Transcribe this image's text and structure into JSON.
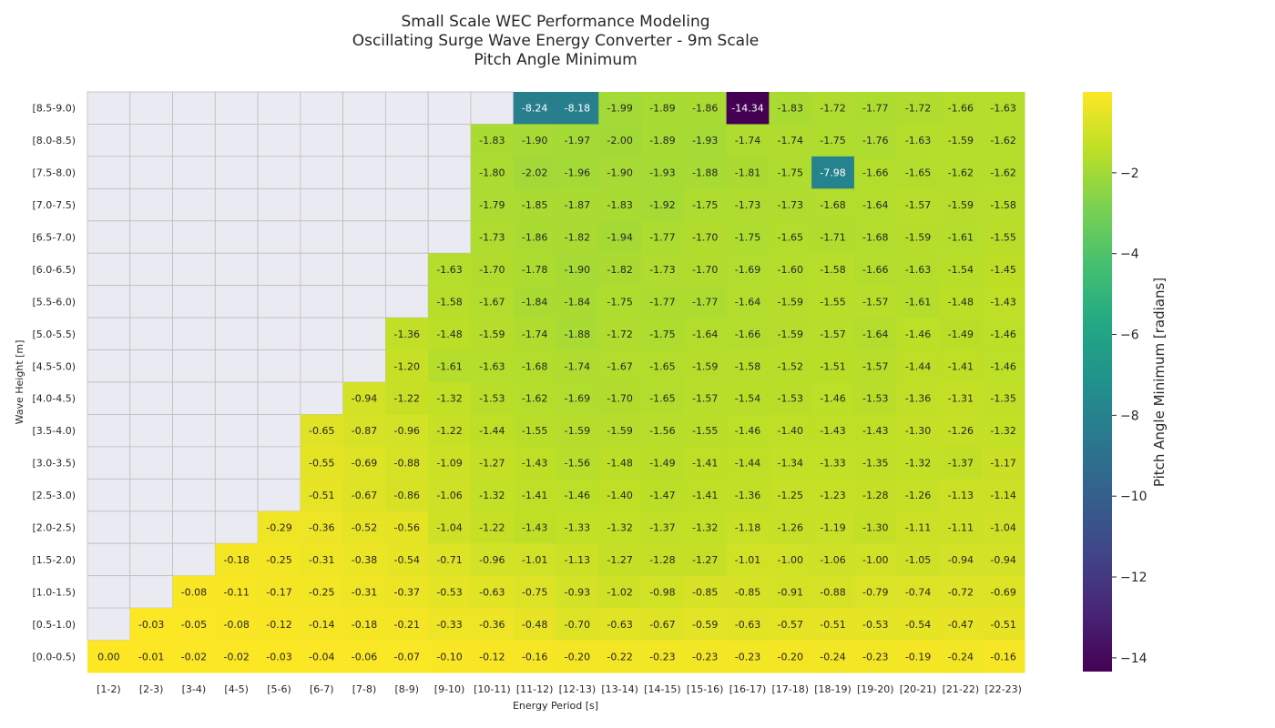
{
  "chart_data": {
    "type": "heatmap",
    "title": [
      "Small Scale WEC Performance Modeling",
      "Oscillating Surge Wave Energy Converter - 9m Scale",
      "Pitch Angle Minimum"
    ],
    "xlabel": "Energy Period [s]",
    "ylabel": "Wave Height [m]",
    "colorbar_label": "Pitch Angle Minimum [radians]",
    "colormap": "viridis",
    "vmin": -14.34,
    "vmax": 0.0,
    "colorbar_ticks": [
      -2,
      -4,
      -6,
      -8,
      -10,
      -12,
      -14
    ],
    "colorbar_tick_labels": [
      "−2",
      "−4",
      "−6",
      "−8",
      "−10",
      "−12",
      "−14"
    ],
    "missing_color": "#eaeaf2",
    "x_categories": [
      "[1-2)",
      "[2-3)",
      "[3-4)",
      "[4-5)",
      "[5-6)",
      "[6-7)",
      "[7-8)",
      "[8-9)",
      "[9-10)",
      "[10-11)",
      "[11-12)",
      "[12-13)",
      "[13-14)",
      "[14-15)",
      "[15-16)",
      "[16-17)",
      "[17-18)",
      "[18-19)",
      "[19-20)",
      "[20-21)",
      "[21-22)",
      "[22-23)"
    ],
    "y_categories": [
      "[8.5-9.0)",
      "[8.0-8.5)",
      "[7.5-8.0)",
      "[7.0-7.5)",
      "[6.5-7.0)",
      "[6.0-6.5)",
      "[5.5-6.0)",
      "[5.0-5.5)",
      "[4.5-5.0)",
      "[4.0-4.5)",
      "[3.5-4.0)",
      "[3.0-3.5)",
      "[2.5-3.0)",
      "[2.0-2.5)",
      "[1.5-2.0)",
      "[1.0-1.5)",
      "[0.5-1.0)",
      "[0.0-0.5)"
    ],
    "values": [
      [
        null,
        null,
        null,
        null,
        null,
        null,
        null,
        null,
        null,
        null,
        -8.24,
        -8.18,
        -1.99,
        -1.89,
        -1.86,
        -14.34,
        -1.83,
        -1.72,
        -1.77,
        -1.72,
        -1.66,
        -1.63
      ],
      [
        null,
        null,
        null,
        null,
        null,
        null,
        null,
        null,
        null,
        -1.83,
        -1.9,
        -1.97,
        -2.0,
        -1.89,
        -1.93,
        -1.74,
        -1.74,
        -1.75,
        -1.76,
        -1.63,
        -1.59,
        -1.62
      ],
      [
        null,
        null,
        null,
        null,
        null,
        null,
        null,
        null,
        null,
        -1.8,
        -2.02,
        -1.96,
        -1.9,
        -1.93,
        -1.88,
        -1.81,
        -1.75,
        -7.98,
        -1.66,
        -1.65,
        -1.62,
        -1.62
      ],
      [
        null,
        null,
        null,
        null,
        null,
        null,
        null,
        null,
        null,
        -1.79,
        -1.85,
        -1.87,
        -1.83,
        -1.92,
        -1.75,
        -1.73,
        -1.73,
        -1.68,
        -1.64,
        -1.57,
        -1.59,
        -1.58
      ],
      [
        null,
        null,
        null,
        null,
        null,
        null,
        null,
        null,
        null,
        -1.73,
        -1.86,
        -1.82,
        -1.94,
        -1.77,
        -1.7,
        -1.75,
        -1.65,
        -1.71,
        -1.68,
        -1.59,
        -1.61,
        -1.55
      ],
      [
        null,
        null,
        null,
        null,
        null,
        null,
        null,
        null,
        -1.63,
        -1.7,
        -1.78,
        -1.9,
        -1.82,
        -1.73,
        -1.7,
        -1.69,
        -1.6,
        -1.58,
        -1.66,
        -1.63,
        -1.54,
        -1.45
      ],
      [
        null,
        null,
        null,
        null,
        null,
        null,
        null,
        null,
        -1.58,
        -1.67,
        -1.84,
        -1.84,
        -1.75,
        -1.77,
        -1.77,
        -1.64,
        -1.59,
        -1.55,
        -1.57,
        -1.61,
        -1.48,
        -1.43
      ],
      [
        null,
        null,
        null,
        null,
        null,
        null,
        null,
        -1.36,
        -1.48,
        -1.59,
        -1.74,
        -1.88,
        -1.72,
        -1.75,
        -1.64,
        -1.66,
        -1.59,
        -1.57,
        -1.64,
        -1.46,
        -1.49,
        -1.46
      ],
      [
        null,
        null,
        null,
        null,
        null,
        null,
        null,
        -1.2,
        -1.61,
        -1.63,
        -1.68,
        -1.74,
        -1.67,
        -1.65,
        -1.59,
        -1.58,
        -1.52,
        -1.51,
        -1.57,
        -1.44,
        -1.41,
        -1.46
      ],
      [
        null,
        null,
        null,
        null,
        null,
        null,
        -0.94,
        -1.22,
        -1.32,
        -1.53,
        -1.62,
        -1.69,
        -1.7,
        -1.65,
        -1.57,
        -1.54,
        -1.53,
        -1.46,
        -1.53,
        -1.36,
        -1.31,
        -1.35
      ],
      [
        null,
        null,
        null,
        null,
        null,
        -0.65,
        -0.87,
        -0.96,
        -1.22,
        -1.44,
        -1.55,
        -1.59,
        -1.59,
        -1.56,
        -1.55,
        -1.46,
        -1.4,
        -1.43,
        -1.43,
        -1.3,
        -1.26,
        -1.32
      ],
      [
        null,
        null,
        null,
        null,
        null,
        -0.55,
        -0.69,
        -0.88,
        -1.09,
        -1.27,
        -1.43,
        -1.56,
        -1.48,
        -1.49,
        -1.41,
        -1.44,
        -1.34,
        -1.33,
        -1.35,
        -1.32,
        -1.37,
        -1.17
      ],
      [
        null,
        null,
        null,
        null,
        null,
        -0.51,
        -0.67,
        -0.86,
        -1.06,
        -1.32,
        -1.41,
        -1.46,
        -1.4,
        -1.47,
        -1.41,
        -1.36,
        -1.25,
        -1.23,
        -1.28,
        -1.26,
        -1.13,
        -1.14
      ],
      [
        null,
        null,
        null,
        null,
        -0.29,
        -0.36,
        -0.52,
        -0.56,
        -1.04,
        -1.22,
        -1.43,
        -1.33,
        -1.32,
        -1.37,
        -1.32,
        -1.18,
        -1.26,
        -1.19,
        -1.3,
        -1.11,
        -1.11,
        -1.04
      ],
      [
        null,
        null,
        null,
        -0.18,
        -0.25,
        -0.31,
        -0.38,
        -0.54,
        -0.71,
        -0.96,
        -1.01,
        -1.13,
        -1.27,
        -1.28,
        -1.27,
        -1.01,
        -1.0,
        -1.06,
        -1.0,
        -1.05,
        -0.94,
        -0.94
      ],
      [
        null,
        null,
        -0.08,
        -0.11,
        -0.17,
        -0.25,
        -0.31,
        -0.37,
        -0.53,
        -0.63,
        -0.75,
        -0.93,
        -1.02,
        -0.98,
        -0.85,
        -0.85,
        -0.91,
        -0.88,
        -0.79,
        -0.74,
        -0.72,
        -0.69
      ],
      [
        null,
        -0.03,
        -0.05,
        -0.08,
        -0.12,
        -0.14,
        -0.18,
        -0.21,
        -0.33,
        -0.36,
        -0.48,
        -0.7,
        -0.63,
        -0.67,
        -0.59,
        -0.63,
        -0.57,
        -0.51,
        -0.53,
        -0.54,
        -0.47,
        -0.51
      ],
      [
        -0.0,
        -0.01,
        -0.02,
        -0.02,
        -0.03,
        -0.04,
        -0.06,
        -0.07,
        -0.1,
        -0.12,
        -0.16,
        -0.2,
        -0.22,
        -0.23,
        -0.23,
        -0.23,
        -0.2,
        -0.24,
        -0.23,
        -0.19,
        -0.24,
        -0.16
      ]
    ]
  }
}
